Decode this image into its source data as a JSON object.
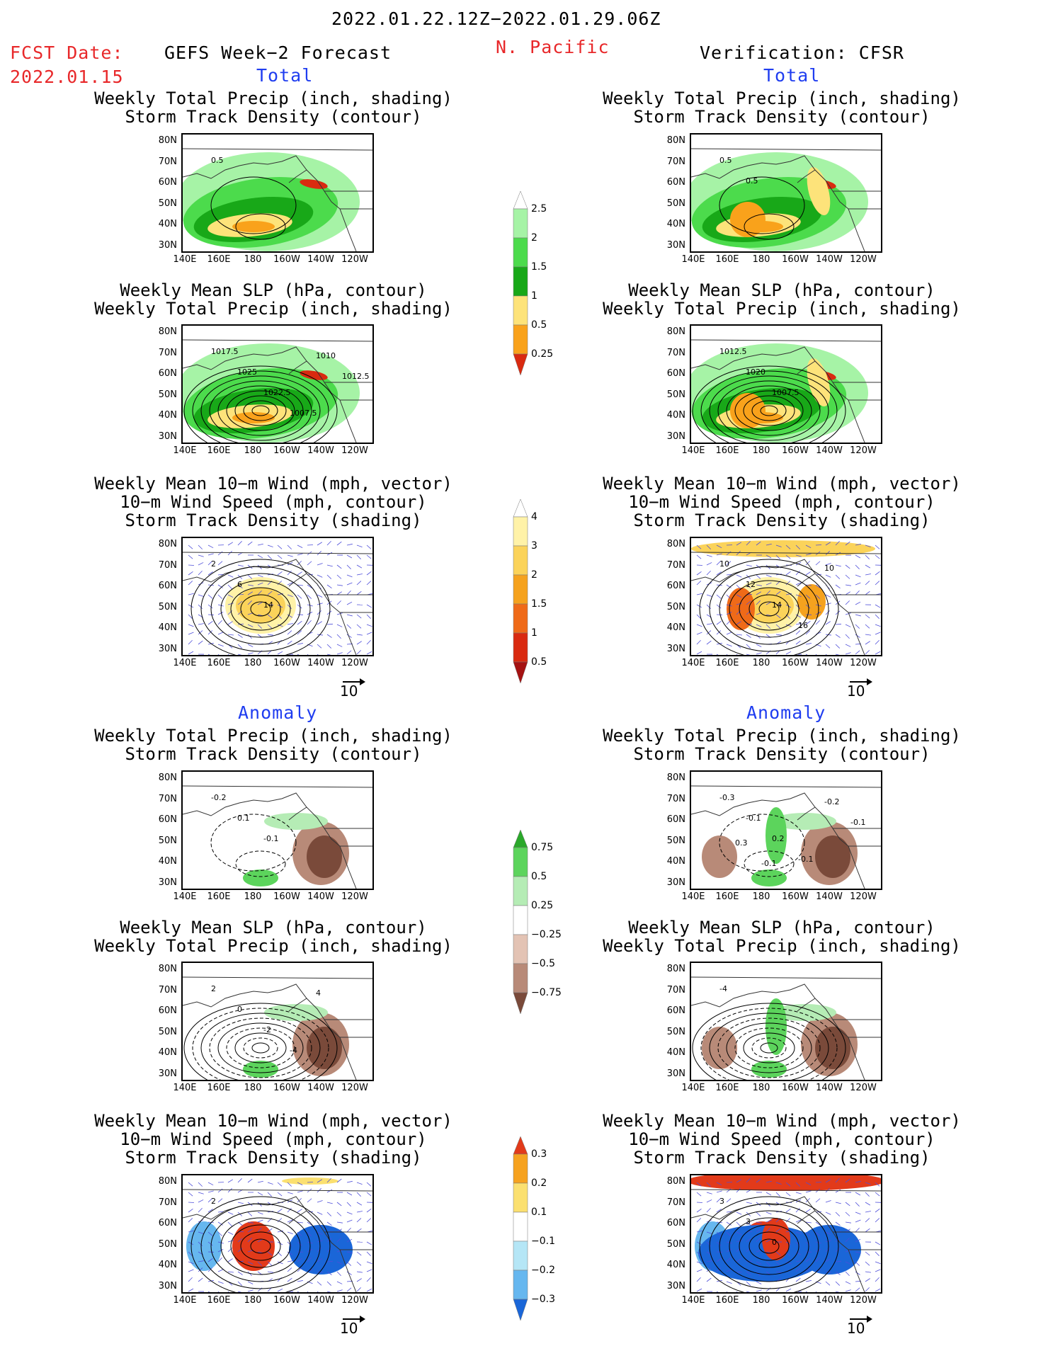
{
  "header": {
    "date_range": "2022.01.22.12Z−2022.01.29.06Z",
    "fcst_label": "FCST Date:",
    "fcst_date": "2022.01.15",
    "forecast_title": "GEFS Week−2 Forecast",
    "region": "N. Pacific",
    "verification": "Verification: CFSR"
  },
  "sections": {
    "total": "Total",
    "anomaly": "Anomaly"
  },
  "titles": {
    "precip_track": "Weekly Total Precip (inch, shading)\nStorm Track Density (contour)",
    "slp_precip": "Weekly Mean SLP (hPa, contour)\nWeekly Total Precip (inch, shading)",
    "wind": "Weekly Mean 10−m Wind (mph, vector)\n10−m Wind Speed (mph, contour)\nStorm Track Density (shading)"
  },
  "axes": {
    "lat_ticks": [
      "80N",
      "70N",
      "60N",
      "50N",
      "40N",
      "30N"
    ],
    "lon_ticks": [
      "140E",
      "160E",
      "180",
      "160W",
      "140W",
      "120W"
    ]
  },
  "vector_ref": "10",
  "colorbars": {
    "precip_total": [
      "2.5",
      "2",
      "1.5",
      "1",
      "0.5",
      "0.25"
    ],
    "track_total": [
      "4",
      "3",
      "2",
      "1.5",
      "1",
      "0.5"
    ],
    "precip_anom": [
      "0.75",
      "0.5",
      "0.25",
      "−0.25",
      "−0.5",
      "−0.75"
    ],
    "track_anom": [
      "0.3",
      "0.2",
      "0.1",
      "−0.1",
      "−0.2",
      "−0.3"
    ]
  },
  "contour_labels": {
    "p1_left": [
      "0.5"
    ],
    "p1_right": [
      "0.5",
      "0.5"
    ],
    "p2_left": [
      "1017.5",
      "1025",
      "1022.5",
      "1007.5",
      "1010",
      "1012.5"
    ],
    "p2_right": [
      "1012.5",
      "1020",
      "1007.5"
    ],
    "p3_left": [
      "2",
      "6",
      "14"
    ],
    "p3_right": [
      "10",
      "12",
      "14",
      "16",
      "10"
    ],
    "p4_left": [
      "-0.2",
      "0.1",
      "-0.1"
    ],
    "p4_right": [
      "-0.3",
      "-0.1",
      "0.2",
      "-0.1",
      "-0.2",
      "-0.1",
      "0.3",
      "-0.1"
    ],
    "p5_left": [
      "2",
      "0",
      "-2",
      "-4",
      "4"
    ],
    "p5_right": [
      "-4"
    ],
    "p6_left": [
      "2"
    ],
    "p6_right": [
      "3",
      "3",
      "0"
    ]
  },
  "colors": {
    "precip_total": [
      "#ffffff",
      "#a6f3a6",
      "#4cdb4c",
      "#18a818",
      "#fde37a",
      "#f9a21b",
      "#d92a10"
    ],
    "track_total": [
      "#ffffff",
      "#fff2a8",
      "#fbd35a",
      "#f5a21e",
      "#ef6a18",
      "#d92a10",
      "#a51212"
    ],
    "precip_anom": [
      "#2aa82a",
      "#5cd45c",
      "#b5ecb5",
      "#ffffff",
      "#e3c3b4",
      "#b88a78",
      "#7a4a3a"
    ],
    "track_anom": [
      "#e23a1a",
      "#f6a21f",
      "#fbe070",
      "#ffffff",
      "#b5e6f6",
      "#66b7ef",
      "#1a66d8"
    ]
  }
}
